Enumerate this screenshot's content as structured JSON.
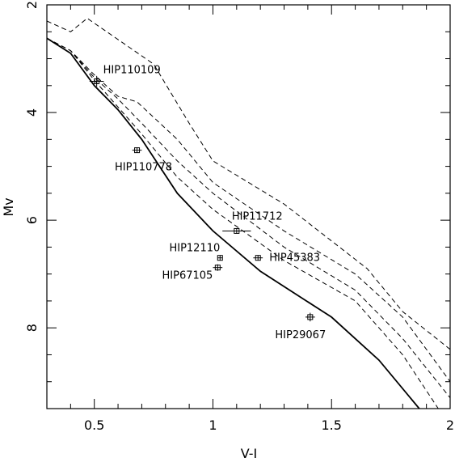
{
  "chart_data": {
    "type": "scatter",
    "xlabel": "V-I",
    "ylabel": "Mv",
    "xlim": [
      0.3,
      2.0
    ],
    "ylim": [
      9.5,
      2.0
    ],
    "y_inverted": true,
    "grid": false,
    "x_ticks": [
      {
        "value": 0.5,
        "label": "0.5"
      },
      {
        "value": 1.0,
        "label": "1"
      },
      {
        "value": 1.5,
        "label": "1.5"
      },
      {
        "value": 2.0,
        "label": "2"
      }
    ],
    "y_ticks": [
      {
        "value": 2,
        "label": "2"
      },
      {
        "value": 4,
        "label": "4"
      },
      {
        "value": 6,
        "label": "6"
      },
      {
        "value": 8,
        "label": "8"
      }
    ],
    "x_minor_step": 0.1,
    "y_minor_step": 0.5,
    "curves": [
      {
        "style": "solid",
        "points": [
          [
            0.3,
            2.62
          ],
          [
            0.4,
            2.9
          ],
          [
            0.5,
            3.5
          ],
          [
            0.6,
            3.95
          ],
          [
            0.7,
            4.5
          ],
          [
            0.85,
            5.5
          ],
          [
            1.0,
            6.2
          ],
          [
            1.2,
            6.95
          ],
          [
            1.5,
            7.8
          ],
          [
            1.7,
            8.6
          ],
          [
            1.87,
            9.5
          ]
        ]
      },
      {
        "style": "dashed",
        "points": [
          [
            0.3,
            2.62
          ],
          [
            0.4,
            2.85
          ],
          [
            0.5,
            3.4
          ],
          [
            0.6,
            3.9
          ],
          [
            0.7,
            4.4
          ],
          [
            0.85,
            5.2
          ],
          [
            1.0,
            5.8
          ],
          [
            1.3,
            6.75
          ],
          [
            1.6,
            7.5
          ],
          [
            1.8,
            8.5
          ],
          [
            1.95,
            9.5
          ]
        ]
      },
      {
        "style": "dashed",
        "points": [
          [
            0.3,
            2.62
          ],
          [
            0.4,
            2.85
          ],
          [
            0.5,
            3.35
          ],
          [
            0.6,
            3.75
          ],
          [
            0.7,
            4.2
          ],
          [
            0.85,
            4.9
          ],
          [
            1.0,
            5.5
          ],
          [
            1.3,
            6.5
          ],
          [
            1.6,
            7.3
          ],
          [
            1.8,
            8.2
          ],
          [
            2.0,
            9.3
          ]
        ]
      },
      {
        "style": "dashed",
        "points": [
          [
            0.3,
            2.62
          ],
          [
            0.4,
            2.85
          ],
          [
            0.5,
            3.3
          ],
          [
            0.6,
            3.7
          ],
          [
            0.68,
            3.8
          ],
          [
            0.85,
            4.5
          ],
          [
            1.0,
            5.3
          ],
          [
            1.3,
            6.2
          ],
          [
            1.6,
            7.0
          ],
          [
            1.8,
            7.8
          ],
          [
            2.0,
            9.0
          ]
        ]
      },
      {
        "style": "dashed",
        "points": [
          [
            0.3,
            2.3
          ],
          [
            0.4,
            2.5
          ],
          [
            0.47,
            2.25
          ],
          [
            0.75,
            3.1
          ],
          [
            0.9,
            4.2
          ],
          [
            1.0,
            4.9
          ],
          [
            1.3,
            5.7
          ],
          [
            1.65,
            6.9
          ],
          [
            1.8,
            7.7
          ],
          [
            2.0,
            8.4
          ]
        ]
      }
    ],
    "points": [
      {
        "name": "HIP110109",
        "x": 0.51,
        "y": 3.42,
        "xerr": 0.03,
        "yerr": 0.1,
        "label_anchor": "start",
        "label_dx": 8,
        "label_dy": -10
      },
      {
        "name": "HIP110778",
        "x": 0.68,
        "y": 4.7,
        "xerr": 0.02,
        "yerr": 0.05,
        "label_anchor": "middle",
        "label_dx": 8,
        "label_dy": 25
      },
      {
        "name": "HIP11712",
        "x": 1.1,
        "y": 6.2,
        "xerr": 0.06,
        "yerr": 0.05,
        "label_anchor": "start",
        "label_dx": -6,
        "label_dy": -14
      },
      {
        "name": "HIP12110",
        "x": 1.03,
        "y": 6.7,
        "xerr": 0.01,
        "yerr": 0.05,
        "label_anchor": "end",
        "label_dx": 0,
        "label_dy": -8
      },
      {
        "name": "HIP67105",
        "x": 1.02,
        "y": 6.88,
        "xerr": 0.02,
        "yerr": 0.06,
        "label_anchor": "end",
        "label_dx": -6,
        "label_dy": 14
      },
      {
        "name": "HIP45383",
        "x": 1.19,
        "y": 6.7,
        "xerr": 0.02,
        "yerr": 0.05,
        "label_anchor": "start",
        "label_dx": 14,
        "label_dy": 4
      },
      {
        "name": "HIP29067",
        "x": 1.41,
        "y": 7.8,
        "xerr": 0.02,
        "yerr": 0.08,
        "label_anchor": "middle",
        "label_dx": -12,
        "label_dy": 26
      }
    ]
  }
}
